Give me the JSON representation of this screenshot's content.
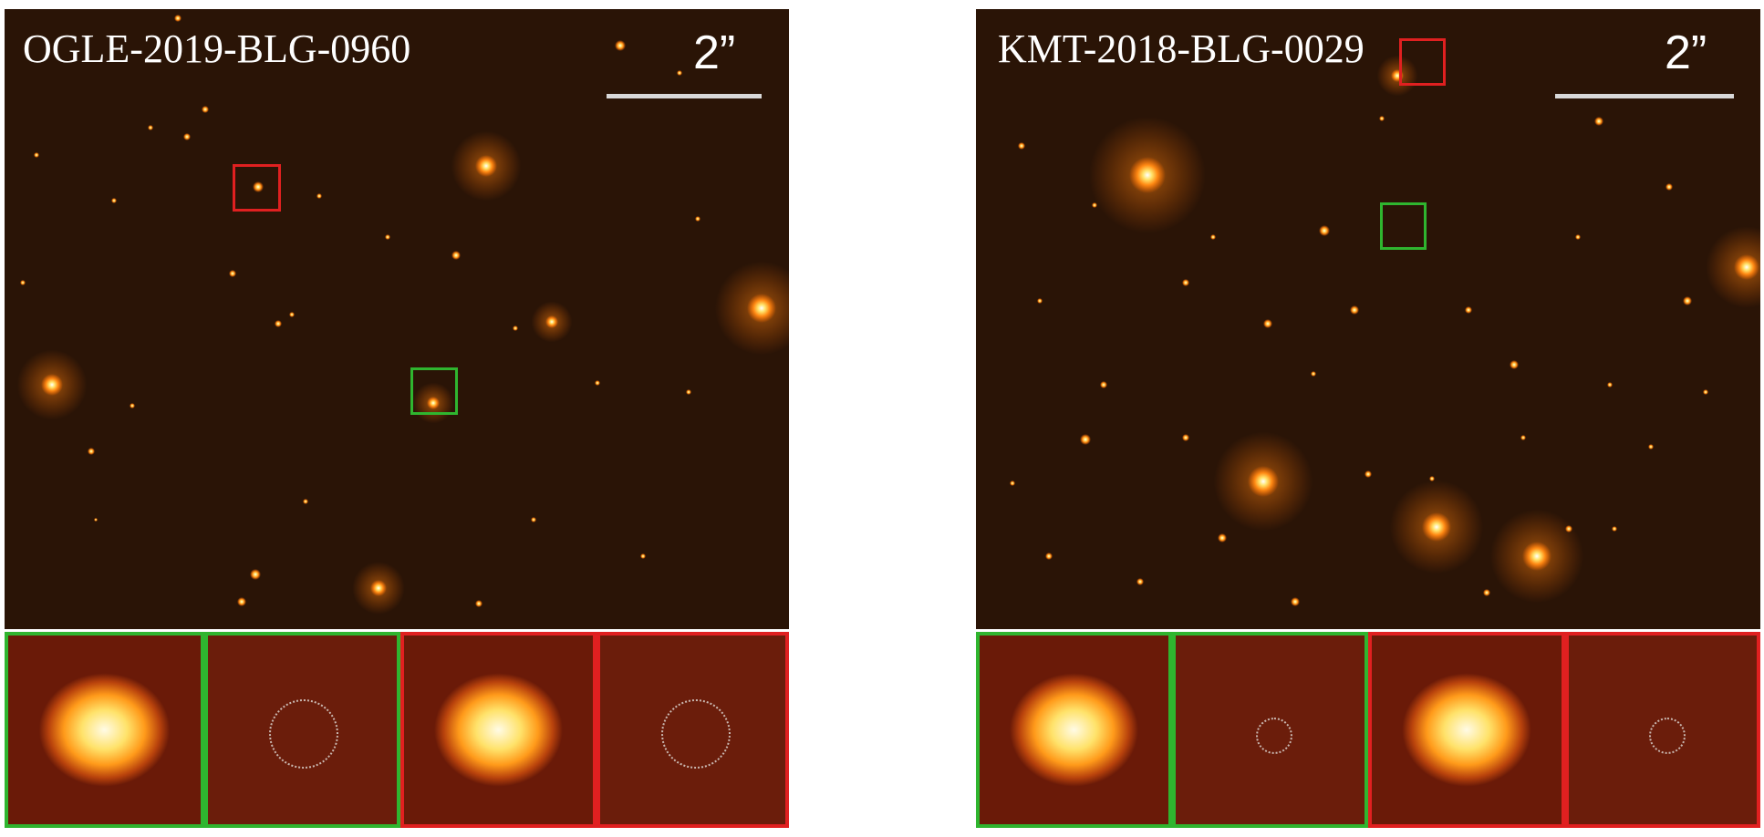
{
  "panels": {
    "left": {
      "target_name": "OGLE-2019-BLG-0960",
      "scale_label": "2”"
    },
    "right": {
      "target_name": "KMT-2018-BLG-0029",
      "scale_label": "2”"
    }
  },
  "colors": {
    "field_background": "#2a1406",
    "star": "#ff9a1a",
    "green_box": "#2fb52f",
    "red_box": "#e02020",
    "scale_bar": "#d9d9d9"
  }
}
